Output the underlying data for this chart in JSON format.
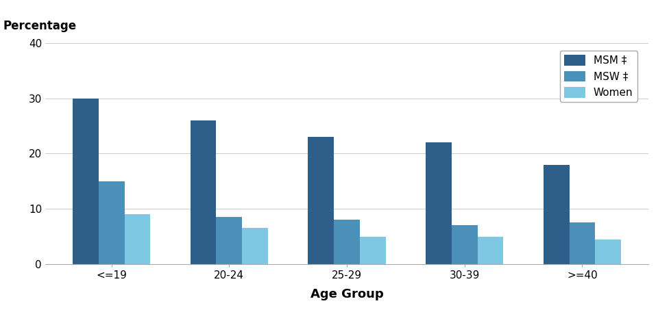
{
  "categories": [
    "<=19",
    "20-24",
    "25-29",
    "30-39",
    ">=40"
  ],
  "series": {
    "MSM ‡": [
      30,
      26,
      23,
      22,
      18
    ],
    "MSW ‡": [
      15,
      8.5,
      8,
      7,
      7.5
    ],
    "Women": [
      9,
      6.5,
      5,
      5,
      4.5
    ]
  },
  "colors": {
    "MSM ‡": "#2e5f8a",
    "MSW ‡": "#4a90b8",
    "Women": "#7ec8e3"
  },
  "ylabel": "Percentage",
  "xlabel": "Age Group",
  "ylim": [
    0,
    40
  ],
  "yticks": [
    0,
    10,
    20,
    30,
    40
  ],
  "legend_labels": [
    "MSM ‡",
    "MSW ‡",
    "Women"
  ],
  "bar_width": 0.22,
  "background_color": "#ffffff",
  "axis_label_fontsize": 13,
  "tick_fontsize": 11,
  "legend_fontsize": 11,
  "ylabel_fontsize": 12
}
